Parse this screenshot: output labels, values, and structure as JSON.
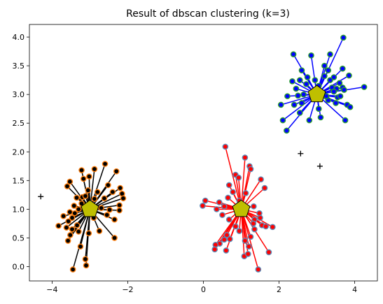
{
  "chart_data": {
    "type": "scatter",
    "title": "Result of dbscan clustering (k=3)",
    "xlabel": "",
    "ylabel": "",
    "xlim": [
      -4.6,
      4.6
    ],
    "ylim": [
      -0.25,
      4.22
    ],
    "xticks": [
      -4,
      -2,
      0,
      2,
      4
    ],
    "xtick_labels": [
      "−4",
      "−2",
      "0",
      "2",
      "4"
    ],
    "yticks": [
      0.0,
      0.5,
      1.0,
      1.5,
      2.0,
      2.5,
      3.0,
      3.5,
      4.0
    ],
    "ytick_labels": [
      "0.0",
      "0.5",
      "1.0",
      "1.5",
      "2.0",
      "2.5",
      "3.0",
      "3.5",
      "4.0"
    ],
    "grid": false,
    "legend": "none",
    "clusters": [
      {
        "centroid": [
          -3.0,
          1.0
        ],
        "line_color": "#000000",
        "point_fill": "#000000",
        "point_edge": "#ff7f0e",
        "points": [
          [
            -3.45,
            -0.05
          ],
          [
            -3.1,
            0.02
          ],
          [
            -3.12,
            0.13
          ],
          [
            -3.58,
            0.45
          ],
          [
            -3.52,
            0.55
          ],
          [
            -3.47,
            0.65
          ],
          [
            -3.3,
            0.61
          ],
          [
            -3.03,
            0.58
          ],
          [
            -2.75,
            0.62
          ],
          [
            -2.35,
            0.5
          ],
          [
            -3.83,
            0.71
          ],
          [
            -3.62,
            0.68
          ],
          [
            -3.57,
            0.79
          ],
          [
            -3.47,
            0.85
          ],
          [
            -3.34,
            0.72
          ],
          [
            -3.53,
            0.95
          ],
          [
            -3.4,
            0.93
          ],
          [
            -3.3,
            1.0
          ],
          [
            -3.22,
            1.1
          ],
          [
            -3.42,
            1.06
          ],
          [
            -3.35,
            1.2
          ],
          [
            -3.2,
            1.21
          ],
          [
            -3.12,
            1.23
          ],
          [
            -3.05,
            1.33
          ],
          [
            -3.6,
            1.4
          ],
          [
            -3.53,
            1.48
          ],
          [
            -3.17,
            1.53
          ],
          [
            -3.02,
            1.57
          ],
          [
            -3.22,
            1.68
          ],
          [
            -2.88,
            1.7
          ],
          [
            -2.6,
            1.79
          ],
          [
            -2.52,
            1.42
          ],
          [
            -2.3,
            1.66
          ],
          [
            -2.62,
            1.19
          ],
          [
            -2.88,
            1.18
          ],
          [
            -2.7,
            1.02
          ],
          [
            -2.48,
            0.99
          ],
          [
            -2.22,
            1.07
          ],
          [
            -2.15,
            1.27
          ],
          [
            -2.2,
            1.37
          ],
          [
            -2.22,
            0.98
          ],
          [
            -2.12,
            1.19
          ],
          [
            -2.35,
            0.82
          ],
          [
            -2.55,
            0.9
          ],
          [
            -2.9,
            0.85
          ],
          [
            -2.8,
            1.3
          ],
          [
            -3.25,
            0.35
          ],
          [
            -3.7,
            0.88
          ],
          [
            -2.4,
            1.3
          ],
          [
            -3.1,
            0.92
          ]
        ]
      },
      {
        "centroid": [
          1.0,
          1.0
        ],
        "line_color": "#ff0000",
        "point_fill": "#ff0000",
        "point_edge": "#5b8bb8",
        "points": [
          [
            0.58,
            2.09
          ],
          [
            0.85,
            1.6
          ],
          [
            0.93,
            1.55
          ],
          [
            1.1,
            1.9
          ],
          [
            1.22,
            1.75
          ],
          [
            1.25,
            1.7
          ],
          [
            1.52,
            1.52
          ],
          [
            1.62,
            1.37
          ],
          [
            0.68,
            1.42
          ],
          [
            0.65,
            1.2
          ],
          [
            0.42,
            1.12
          ],
          [
            0.55,
            1.05
          ],
          [
            0.35,
            1.0
          ],
          [
            0.05,
            1.15
          ],
          [
            -0.02,
            1.06
          ],
          [
            0.5,
            0.9
          ],
          [
            0.68,
            0.82
          ],
          [
            1.35,
            0.82
          ],
          [
            1.32,
            0.75
          ],
          [
            1.5,
            0.85
          ],
          [
            1.55,
            0.72
          ],
          [
            1.65,
            0.7
          ],
          [
            1.83,
            0.69
          ],
          [
            1.48,
            0.93
          ],
          [
            1.35,
            0.65
          ],
          [
            0.85,
            0.7
          ],
          [
            0.95,
            0.62
          ],
          [
            0.62,
            0.55
          ],
          [
            0.55,
            0.47
          ],
          [
            0.43,
            0.4
          ],
          [
            0.32,
            0.38
          ],
          [
            0.7,
            0.48
          ],
          [
            0.6,
            0.28
          ],
          [
            0.3,
            0.3
          ],
          [
            1.1,
            0.45
          ],
          [
            1.2,
            0.35
          ],
          [
            1.08,
            0.18
          ],
          [
            1.18,
            0.22
          ],
          [
            1.45,
            -0.05
          ],
          [
            1.73,
            0.25
          ],
          [
            1.25,
            0.52
          ],
          [
            0.95,
            1.15
          ],
          [
            1.12,
            1.28
          ],
          [
            1.33,
            1.05
          ],
          [
            0.78,
            1.3
          ]
        ]
      },
      {
        "centroid": [
          3.0,
          3.0
        ],
        "line_color": "#0000ff",
        "point_fill": "#0000ff",
        "point_edge": "#2ca02c",
        "points": [
          [
            3.7,
            3.99
          ],
          [
            3.35,
            3.7
          ],
          [
            2.38,
            3.7
          ],
          [
            2.85,
            3.68
          ],
          [
            3.2,
            3.5
          ],
          [
            3.3,
            3.42
          ],
          [
            3.68,
            3.45
          ],
          [
            3.85,
            3.33
          ],
          [
            2.6,
            3.42
          ],
          [
            2.75,
            3.3
          ],
          [
            2.95,
            3.25
          ],
          [
            3.2,
            3.32
          ],
          [
            3.35,
            3.25
          ],
          [
            3.45,
            3.3
          ],
          [
            2.35,
            3.23
          ],
          [
            2.45,
            3.1
          ],
          [
            2.72,
            3.18
          ],
          [
            3.05,
            3.15
          ],
          [
            3.4,
            3.12
          ],
          [
            3.52,
            3.1
          ],
          [
            3.68,
            3.12
          ],
          [
            4.25,
            3.13
          ],
          [
            2.22,
            2.97
          ],
          [
            2.5,
            2.98
          ],
          [
            2.65,
            3.0
          ],
          [
            3.45,
            3.05
          ],
          [
            3.55,
            2.95
          ],
          [
            3.62,
            2.97
          ],
          [
            3.72,
            3.08
          ],
          [
            2.05,
            2.82
          ],
          [
            2.4,
            2.82
          ],
          [
            2.6,
            2.85
          ],
          [
            3.3,
            2.9
          ],
          [
            3.5,
            2.85
          ],
          [
            3.8,
            2.82
          ],
          [
            3.88,
            2.78
          ],
          [
            2.55,
            2.68
          ],
          [
            2.1,
            2.55
          ],
          [
            2.8,
            2.55
          ],
          [
            3.75,
            2.55
          ],
          [
            2.2,
            2.37
          ],
          [
            3.1,
            2.6
          ],
          [
            3.25,
            2.97
          ],
          [
            2.55,
            3.25
          ],
          [
            3.05,
            2.75
          ],
          [
            3.6,
            3.2
          ]
        ]
      }
    ],
    "noise": [
      [
        -4.3,
        1.22
      ],
      [
        2.57,
        1.97
      ],
      [
        3.08,
        1.75
      ]
    ]
  }
}
